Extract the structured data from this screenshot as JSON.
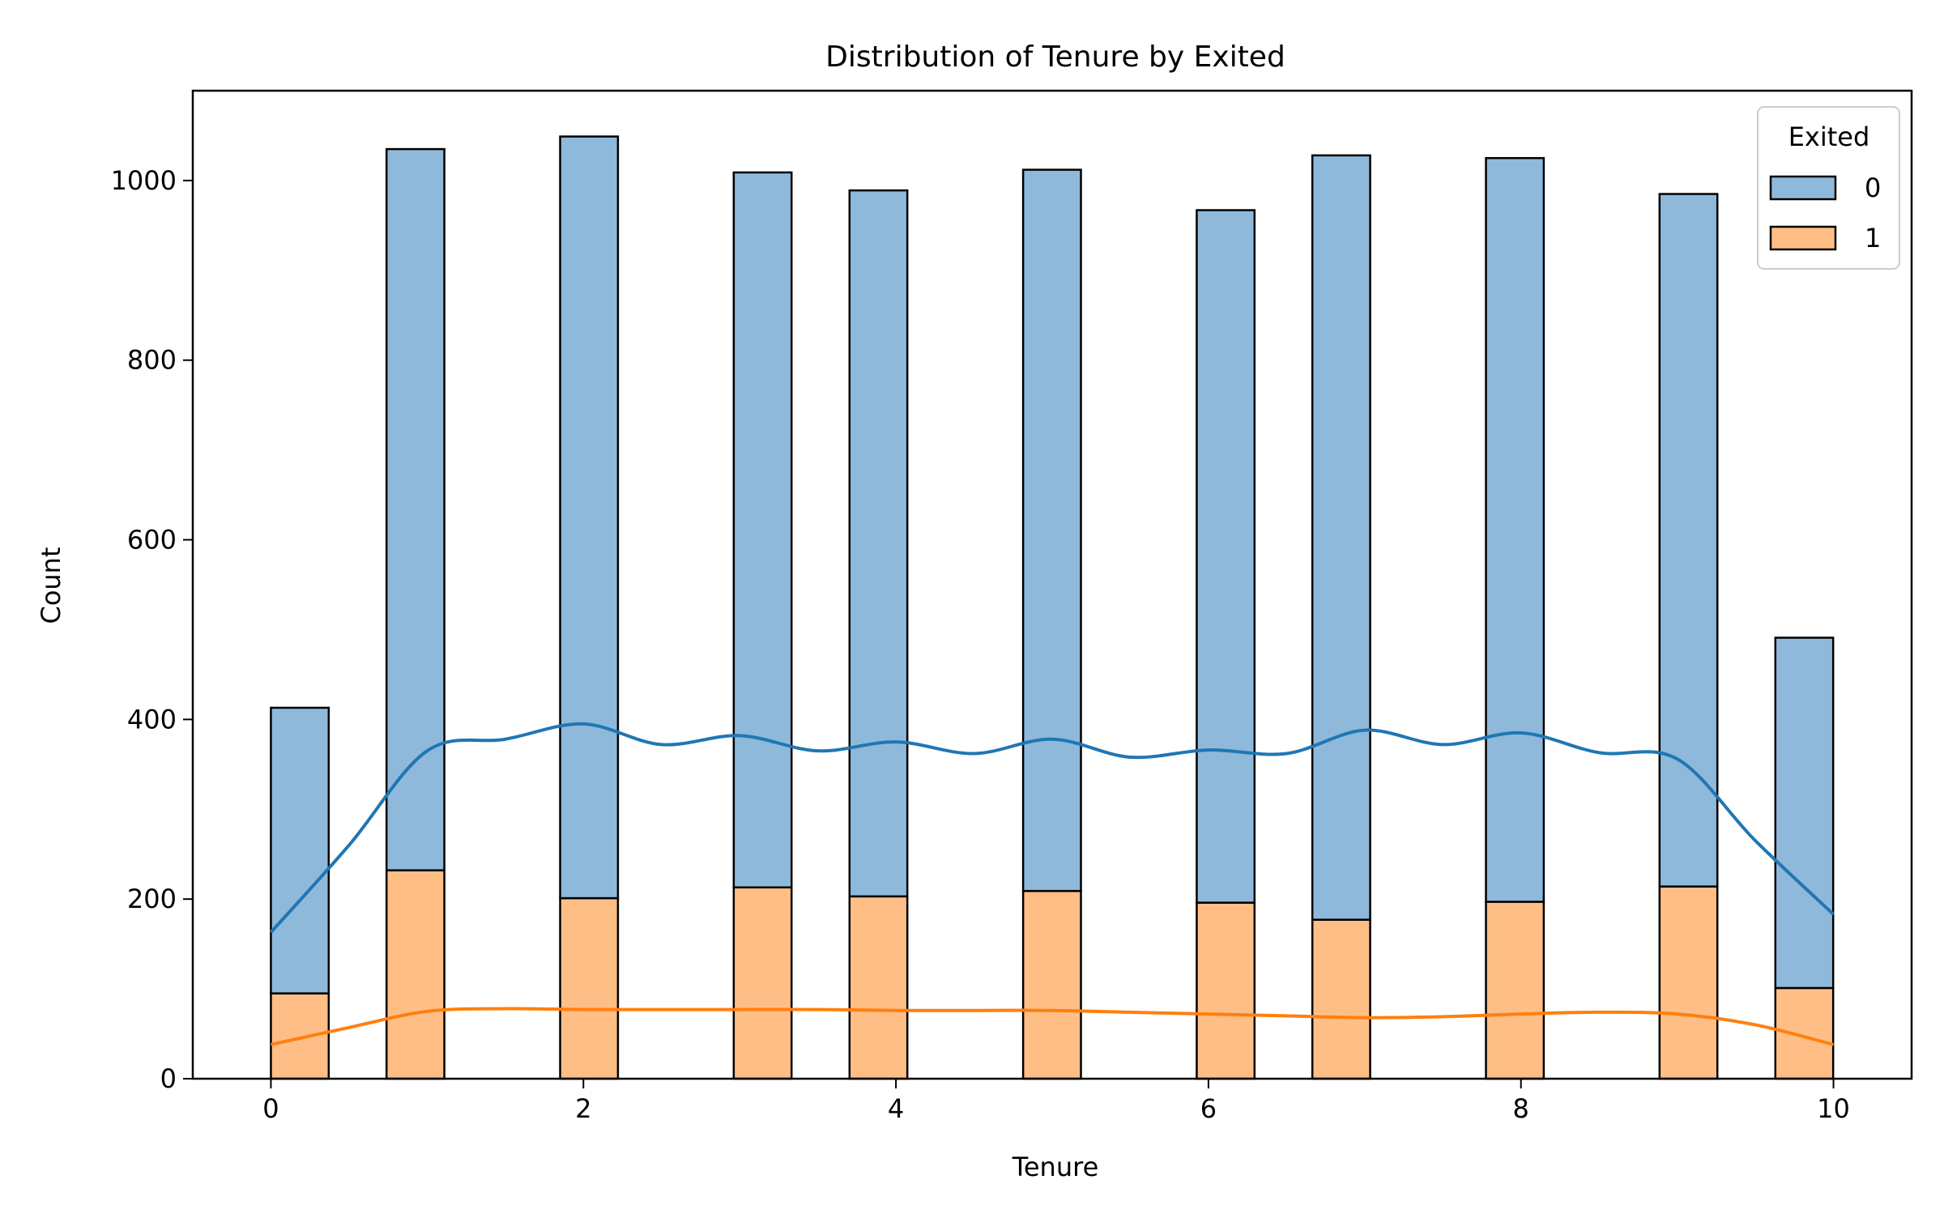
{
  "chart_data": {
    "type": "bar",
    "title": "Distribution of Tenure by Exited",
    "xlabel": "Tenure",
    "ylabel": "Count",
    "xlim": [
      -0.5,
      10.5
    ],
    "ylim": [
      0,
      1100
    ],
    "xticks": [
      0,
      2,
      4,
      6,
      8,
      10
    ],
    "yticks": [
      0,
      200,
      400,
      600,
      800,
      1000
    ],
    "stacked": true,
    "bins": {
      "centers": [
        0.185,
        0.925,
        2.036,
        3.147,
        3.888,
        4.999,
        6.11,
        6.85,
        7.961,
        9.072,
        9.813
      ],
      "width": 0.37
    },
    "series": [
      {
        "name": "0",
        "color": "#8fb9da",
        "kde_color": "#1f77b4",
        "values": [
          318,
          803,
          848,
          796,
          786,
          803,
          771,
          851,
          828,
          771,
          390
        ]
      },
      {
        "name": "1",
        "color": "#ffbe86",
        "kde_color": "#ff7f0e",
        "values": [
          95,
          232,
          201,
          213,
          203,
          209,
          196,
          177,
          197,
          214,
          101
        ]
      }
    ],
    "kde": [
      {
        "name": "0",
        "x": [
          0,
          0.5,
          1,
          1.5,
          2,
          2.5,
          3,
          3.5,
          4,
          4.5,
          5,
          5.5,
          6,
          6.5,
          7,
          7.5,
          8,
          8.5,
          9,
          9.5,
          10
        ],
        "y": [
          163,
          260,
          365,
          378,
          395,
          372,
          382,
          365,
          375,
          362,
          378,
          358,
          366,
          362,
          388,
          372,
          385,
          363,
          356,
          265,
          183
        ]
      },
      {
        "name": "1",
        "x": [
          0,
          0.5,
          1,
          1.5,
          2,
          2.5,
          3,
          3.5,
          4,
          4.5,
          5,
          5.5,
          6,
          6.5,
          7,
          7.5,
          8,
          8.5,
          9,
          9.5,
          10
        ],
        "y": [
          38,
          57,
          75,
          78,
          77,
          77,
          77,
          77,
          76,
          76,
          76,
          74,
          72,
          70,
          68,
          69,
          72,
          74,
          72,
          60,
          38
        ]
      }
    ],
    "legend": {
      "title": "Exited",
      "placement": "top-right",
      "entries": [
        "0",
        "1"
      ]
    },
    "grid": false
  }
}
